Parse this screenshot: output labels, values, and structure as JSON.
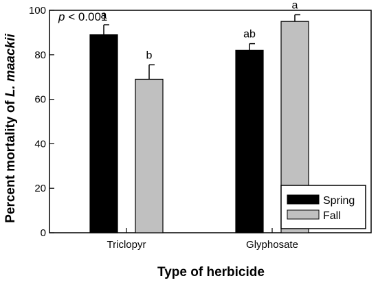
{
  "chart_data": {
    "type": "bar",
    "title": "",
    "annotation_prefix": "p",
    "annotation_rest": " < 0.001",
    "xlabel": "Type of herbicide",
    "ylabel_prefix": "Percent mortality of ",
    "ylabel_italic": "L. maackii",
    "categories": [
      "Triclopyr",
      "Glyphosate"
    ],
    "ylim": [
      0,
      100
    ],
    "yticks": [
      0,
      20,
      40,
      60,
      80,
      100
    ],
    "grid": false,
    "legend_position": "bottom-right",
    "series": [
      {
        "name": "Spring",
        "color": "#000000",
        "values": [
          89,
          82
        ],
        "errors": [
          4.5,
          3
        ],
        "letters": [
          "a",
          "ab"
        ]
      },
      {
        "name": "Fall",
        "color": "#c0c0c0",
        "values": [
          69,
          95
        ],
        "errors": [
          6.5,
          3
        ],
        "letters": [
          "b",
          "a"
        ]
      }
    ]
  }
}
